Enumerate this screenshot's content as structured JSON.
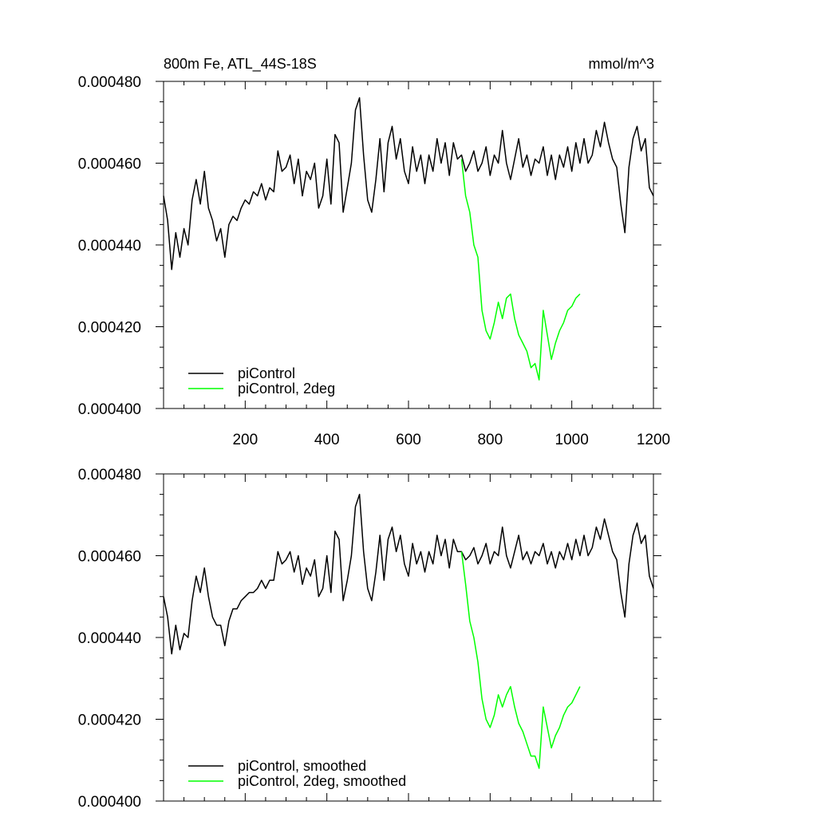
{
  "chart_data": [
    {
      "type": "line",
      "title": "800m Fe, ATL_44S-18S",
      "units": "mmol/m^3",
      "xlabel": "",
      "ylabel": "",
      "xlim": [
        0,
        1200
      ],
      "ylim": [
        0.0004,
        0.00048
      ],
      "xticks": [
        200,
        400,
        600,
        800,
        1000,
        1200
      ],
      "xtick_labels": [
        "200",
        "400",
        "600",
        "800",
        "1000",
        "1200"
      ],
      "yticks": [
        0.0004,
        0.00042,
        0.00044,
        0.00046,
        0.00048
      ],
      "ytick_labels": [
        "0.000400",
        "0.000420",
        "0.000440",
        "0.000460",
        "0.000480"
      ],
      "legend_position": "bottom-left",
      "series": [
        {
          "name": "piControl",
          "color": "#000000",
          "x": [
            0,
            10,
            20,
            30,
            40,
            50,
            60,
            70,
            80,
            90,
            100,
            110,
            120,
            130,
            140,
            150,
            160,
            170,
            180,
            190,
            200,
            210,
            220,
            230,
            240,
            250,
            260,
            270,
            280,
            290,
            300,
            310,
            320,
            330,
            340,
            350,
            360,
            370,
            380,
            390,
            400,
            410,
            420,
            430,
            440,
            450,
            460,
            470,
            480,
            490,
            500,
            510,
            520,
            530,
            540,
            550,
            560,
            570,
            580,
            590,
            600,
            610,
            620,
            630,
            640,
            650,
            660,
            670,
            680,
            690,
            700,
            710,
            720,
            730,
            740,
            750,
            760,
            770,
            780,
            790,
            800,
            810,
            820,
            830,
            840,
            850,
            860,
            870,
            880,
            890,
            900,
            910,
            920,
            930,
            940,
            950,
            960,
            970,
            980,
            990,
            1000,
            1010,
            1020,
            1030,
            1040,
            1050,
            1060,
            1070,
            1080,
            1090,
            1100,
            1110,
            1120,
            1130,
            1140,
            1150,
            1160,
            1170,
            1180,
            1190,
            1200
          ],
          "y": [
            0.000452,
            0.000446,
            0.000434,
            0.000443,
            0.000437,
            0.000444,
            0.00044,
            0.000451,
            0.000456,
            0.00045,
            0.000458,
            0.000449,
            0.000446,
            0.000441,
            0.000444,
            0.000437,
            0.000445,
            0.000447,
            0.000446,
            0.000449,
            0.000451,
            0.00045,
            0.000453,
            0.000452,
            0.000455,
            0.000451,
            0.000454,
            0.000453,
            0.000463,
            0.000458,
            0.000459,
            0.000462,
            0.000455,
            0.000461,
            0.000452,
            0.000458,
            0.000456,
            0.00046,
            0.000449,
            0.000452,
            0.000461,
            0.00045,
            0.000467,
            0.000465,
            0.000448,
            0.000454,
            0.00046,
            0.000473,
            0.000476,
            0.000462,
            0.000451,
            0.000448,
            0.000456,
            0.000466,
            0.000453,
            0.000465,
            0.000469,
            0.000461,
            0.000466,
            0.000458,
            0.000455,
            0.000464,
            0.000458,
            0.000462,
            0.000455,
            0.000462,
            0.000458,
            0.000466,
            0.00046,
            0.000465,
            0.000457,
            0.000465,
            0.000461,
            0.000462,
            0.000458,
            0.00046,
            0.000463,
            0.000458,
            0.00046,
            0.000464,
            0.000457,
            0.000462,
            0.00046,
            0.000468,
            0.00046,
            0.000456,
            0.000461,
            0.000466,
            0.000459,
            0.000462,
            0.000457,
            0.000461,
            0.00046,
            0.000464,
            0.000457,
            0.000462,
            0.000456,
            0.000462,
            0.000459,
            0.000464,
            0.000458,
            0.000465,
            0.00046,
            0.000466,
            0.00046,
            0.000462,
            0.000468,
            0.000464,
            0.00047,
            0.000465,
            0.000461,
            0.000459,
            0.00045,
            0.000443,
            0.000459,
            0.000466,
            0.000469,
            0.000463,
            0.000466,
            0.000454,
            0.000452
          ]
        },
        {
          "name": "piControl, 2deg",
          "color": "#00ff00",
          "x": [
            730,
            740,
            750,
            760,
            770,
            780,
            790,
            800,
            810,
            820,
            830,
            840,
            850,
            860,
            870,
            880,
            890,
            900,
            910,
            920,
            930,
            940,
            950,
            960,
            970,
            980,
            990,
            1000,
            1010,
            1020
          ],
          "y": [
            0.000461,
            0.000452,
            0.000448,
            0.00044,
            0.000437,
            0.000424,
            0.000419,
            0.000417,
            0.000421,
            0.000426,
            0.000422,
            0.000427,
            0.000428,
            0.000422,
            0.000418,
            0.000416,
            0.000414,
            0.00041,
            0.000411,
            0.000407,
            0.000424,
            0.000418,
            0.000412,
            0.000416,
            0.000419,
            0.000421,
            0.000424,
            0.000425,
            0.000427,
            0.000428
          ]
        }
      ]
    },
    {
      "type": "line",
      "title": "",
      "xlabel": "",
      "ylabel": "",
      "xlim": [
        0,
        1200
      ],
      "ylim": [
        0.0004,
        0.00048
      ],
      "yticks": [
        0.0004,
        0.00042,
        0.00044,
        0.00046,
        0.00048
      ],
      "ytick_labels": [
        "0.000400",
        "0.000420",
        "0.000440",
        "0.000460",
        "0.000480"
      ],
      "legend_position": "bottom-left",
      "series": [
        {
          "name": "piControl, smoothed",
          "color": "#000000",
          "x": [
            0,
            10,
            20,
            30,
            40,
            50,
            60,
            70,
            80,
            90,
            100,
            110,
            120,
            130,
            140,
            150,
            160,
            170,
            180,
            190,
            200,
            210,
            220,
            230,
            240,
            250,
            260,
            270,
            280,
            290,
            300,
            310,
            320,
            330,
            340,
            350,
            360,
            370,
            380,
            390,
            400,
            410,
            420,
            430,
            440,
            450,
            460,
            470,
            480,
            490,
            500,
            510,
            520,
            530,
            540,
            550,
            560,
            570,
            580,
            590,
            600,
            610,
            620,
            630,
            640,
            650,
            660,
            670,
            680,
            690,
            700,
            710,
            720,
            730,
            740,
            750,
            760,
            770,
            780,
            790,
            800,
            810,
            820,
            830,
            840,
            850,
            860,
            870,
            880,
            890,
            900,
            910,
            920,
            930,
            940,
            950,
            960,
            970,
            980,
            990,
            1000,
            1010,
            1020,
            1030,
            1040,
            1050,
            1060,
            1070,
            1080,
            1090,
            1100,
            1110,
            1120,
            1130,
            1140,
            1150,
            1160,
            1170,
            1180,
            1190,
            1200
          ],
          "y": [
            0.00045,
            0.000445,
            0.000436,
            0.000443,
            0.000437,
            0.000441,
            0.00044,
            0.000449,
            0.000455,
            0.000451,
            0.000457,
            0.00045,
            0.000445,
            0.000443,
            0.000443,
            0.000438,
            0.000444,
            0.000447,
            0.000447,
            0.000449,
            0.00045,
            0.000451,
            0.000451,
            0.000452,
            0.000454,
            0.000452,
            0.000454,
            0.000454,
            0.000461,
            0.000458,
            0.000459,
            0.000461,
            0.000456,
            0.00046,
            0.000453,
            0.000457,
            0.000455,
            0.000459,
            0.00045,
            0.000452,
            0.00046,
            0.000451,
            0.000466,
            0.000464,
            0.000449,
            0.000454,
            0.00046,
            0.000472,
            0.000475,
            0.000461,
            0.000452,
            0.000449,
            0.000456,
            0.000465,
            0.000454,
            0.000464,
            0.000467,
            0.000461,
            0.000465,
            0.000458,
            0.000455,
            0.000463,
            0.000458,
            0.000461,
            0.000456,
            0.000461,
            0.000458,
            0.000465,
            0.00046,
            0.000464,
            0.000457,
            0.000464,
            0.000461,
            0.000461,
            0.000459,
            0.00046,
            0.000462,
            0.000458,
            0.00046,
            0.000463,
            0.000458,
            0.000461,
            0.00046,
            0.000467,
            0.00046,
            0.000457,
            0.000461,
            0.000465,
            0.000459,
            0.000461,
            0.000458,
            0.000461,
            0.00046,
            0.000463,
            0.000458,
            0.000461,
            0.000457,
            0.000461,
            0.000459,
            0.000463,
            0.000459,
            0.000464,
            0.00046,
            0.000465,
            0.00046,
            0.000462,
            0.000467,
            0.000464,
            0.000469,
            0.000465,
            0.000461,
            0.000459,
            0.000451,
            0.000445,
            0.000458,
            0.000465,
            0.000468,
            0.000463,
            0.000465,
            0.000455,
            0.000452
          ]
        },
        {
          "name": "piControl, 2deg, smoothed",
          "color": "#00ff00",
          "x": [
            730,
            740,
            750,
            760,
            770,
            780,
            790,
            800,
            810,
            820,
            830,
            840,
            850,
            860,
            870,
            880,
            890,
            900,
            910,
            920,
            930,
            940,
            950,
            960,
            970,
            980,
            990,
            1000,
            1010,
            1020
          ],
          "y": [
            0.000461,
            0.000453,
            0.000444,
            0.00044,
            0.000434,
            0.000425,
            0.00042,
            0.000418,
            0.000421,
            0.000426,
            0.000423,
            0.000426,
            0.000428,
            0.000423,
            0.000419,
            0.000417,
            0.000414,
            0.000411,
            0.000411,
            0.000408,
            0.000423,
            0.000418,
            0.000413,
            0.000416,
            0.000418,
            0.000421,
            0.000423,
            0.000424,
            0.000426,
            0.000428
          ]
        }
      ]
    }
  ]
}
